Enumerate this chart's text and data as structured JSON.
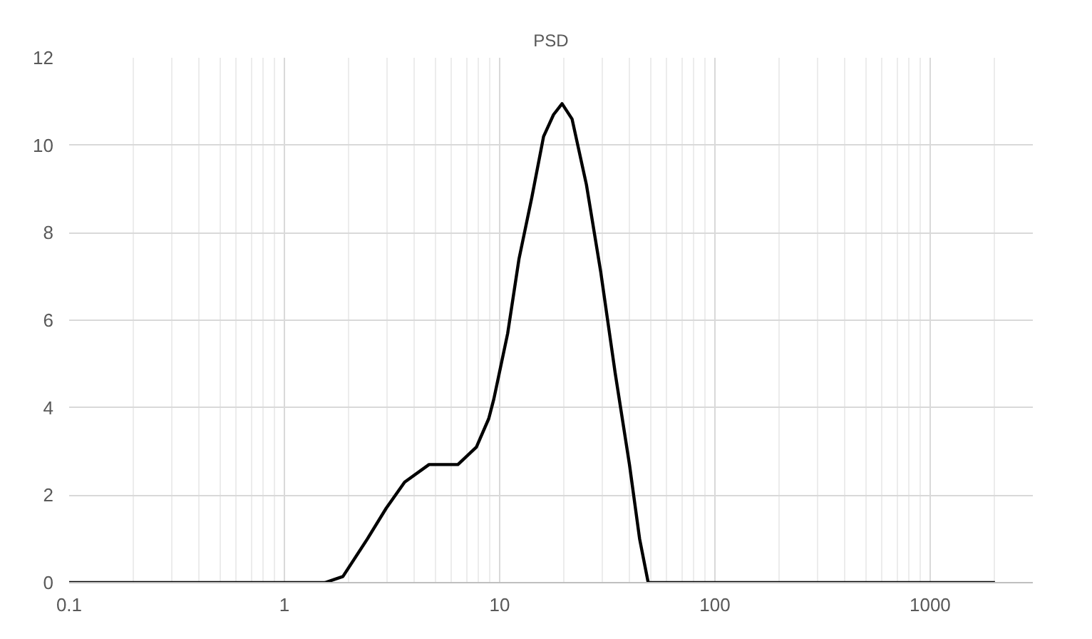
{
  "chart_data": {
    "type": "line",
    "title": "PSD",
    "log": "x",
    "grid": true,
    "marker": "none",
    "line_style": "solid",
    "x": [
      0.1,
      1.54,
      1.87,
      2.43,
      2.97,
      3.62,
      4.7,
      6.4,
      7.8,
      8.9,
      9.4,
      10.9,
      12.3,
      14.1,
      16.0,
      17.8,
      19.5,
      21.7,
      25.3,
      29.5,
      34.4,
      40.1,
      44.7,
      49,
      2000
    ],
    "series": [
      {
        "color": "#000000",
        "values": [
          0,
          0,
          0.14,
          1.0,
          1.7,
          2.3,
          2.7,
          2.7,
          3.1,
          3.75,
          4.2,
          5.7,
          7.4,
          8.8,
          10.2,
          10.7,
          10.95,
          10.6,
          9.1,
          7.1,
          4.8,
          2.7,
          1.0,
          0,
          0
        ]
      }
    ],
    "xlim": [
      0.1,
      3000
    ],
    "xticks": [
      0.1,
      1,
      10,
      100,
      1000
    ],
    "ylim": [
      0,
      12
    ],
    "yticks": [
      0,
      2,
      4,
      6,
      8,
      10,
      12
    ]
  }
}
